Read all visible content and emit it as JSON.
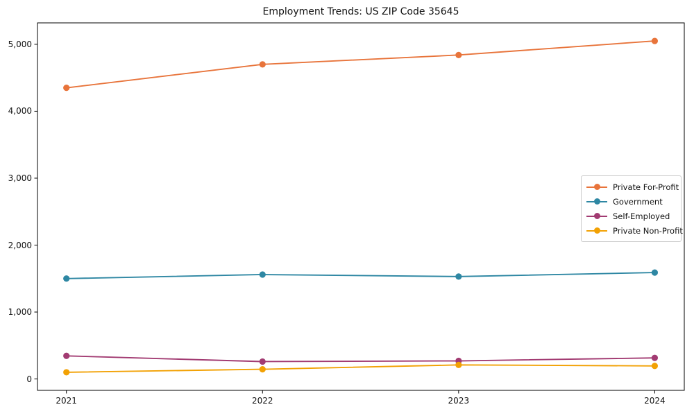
{
  "chart_data": {
    "type": "line",
    "title": "Employment Trends: US ZIP Code 35645",
    "xlabel": "",
    "ylabel": "",
    "x": [
      2021,
      2022,
      2023,
      2024
    ],
    "x_tick_labels": [
      "2021",
      "2022",
      "2023",
      "2024"
    ],
    "y_ticks": [
      0,
      1000,
      2000,
      3000,
      4000,
      5000
    ],
    "y_tick_labels": [
      "0",
      "1,000",
      "2,000",
      "3,000",
      "4,000",
      "5,000"
    ],
    "ylim": [
      -170,
      5320
    ],
    "grid": false,
    "legend_position": "center right",
    "series": [
      {
        "name": "Private For-Profit",
        "color": "#E8743B",
        "values": [
          4350,
          4700,
          4840,
          5050
        ]
      },
      {
        "name": "Government",
        "color": "#2E87A3",
        "values": [
          1500,
          1560,
          1530,
          1590
        ]
      },
      {
        "name": "Self-Employed",
        "color": "#A23B72",
        "values": [
          345,
          260,
          270,
          315
        ]
      },
      {
        "name": "Private Non-Profit",
        "color": "#F2A104",
        "values": [
          100,
          145,
          210,
          195
        ]
      }
    ]
  }
}
